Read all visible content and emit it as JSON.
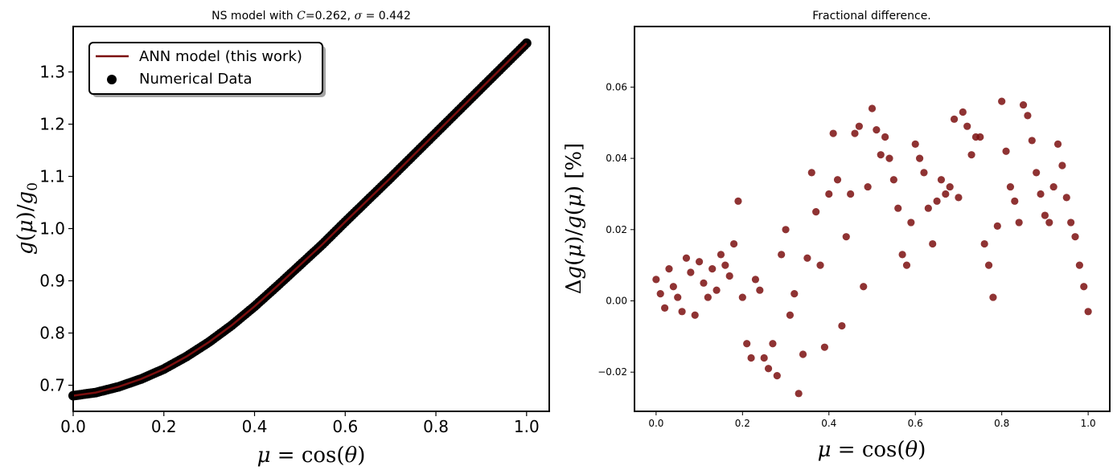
{
  "chart_data": [
    {
      "type": "line+scatter",
      "title": "NS model with C=0.262, σ = 0.442",
      "xlabel": "μ = cos(θ)",
      "ylabel": "g(μ)/g₀",
      "xlim": [
        0.0,
        1.05
      ],
      "ylim": [
        0.65,
        1.387
      ],
      "x_ticks": [
        "0.0",
        "0.2",
        "0.4",
        "0.6",
        "0.8",
        "1.0"
      ],
      "y_ticks": [
        "0.7",
        "0.8",
        "0.9",
        "1.0",
        "1.1",
        "1.2",
        "1.3"
      ],
      "grid": false,
      "legend_position": "upper-left",
      "colors": {
        "line": "#7b0f0f",
        "points": "#000000"
      },
      "series": [
        {
          "name": "ANN model (this work)",
          "kind": "line",
          "x": [
            0.0,
            0.05,
            0.1,
            0.15,
            0.2,
            0.25,
            0.3,
            0.35,
            0.4,
            0.45,
            0.5,
            0.55,
            0.6,
            0.65,
            0.7,
            0.75,
            0.8,
            0.85,
            0.9,
            0.95,
            1.0
          ],
          "y": [
            0.68,
            0.686,
            0.697,
            0.712,
            0.731,
            0.755,
            0.783,
            0.815,
            0.851,
            0.89,
            0.93,
            0.97,
            1.013,
            1.055,
            1.097,
            1.14,
            1.183,
            1.226,
            1.269,
            1.312,
            1.355
          ]
        },
        {
          "name": "Numerical Data",
          "kind": "scatter",
          "x": [
            0.0,
            0.05,
            0.1,
            0.15,
            0.2,
            0.25,
            0.3,
            0.35,
            0.4,
            0.45,
            0.5,
            0.55,
            0.6,
            0.65,
            0.7,
            0.75,
            0.8,
            0.85,
            0.9,
            0.95,
            1.0
          ],
          "y": [
            0.68,
            0.686,
            0.697,
            0.712,
            0.731,
            0.755,
            0.783,
            0.815,
            0.851,
            0.89,
            0.93,
            0.97,
            1.013,
            1.055,
            1.097,
            1.14,
            1.183,
            1.226,
            1.269,
            1.312,
            1.355
          ]
        }
      ]
    },
    {
      "type": "scatter",
      "title": "Fractional difference.",
      "xlabel": "μ = cos(θ)",
      "ylabel": "Δg(μ)/g(μ) [%]",
      "xlim": [
        -0.05,
        1.05
      ],
      "ylim": [
        -0.031,
        0.077
      ],
      "x_ticks": [
        "0.0",
        "0.2",
        "0.4",
        "0.6",
        "0.8",
        "1.0"
      ],
      "y_ticks": [
        "−0.02",
        "0.00",
        "0.02",
        "0.04",
        "0.06"
      ],
      "grid": false,
      "colors": {
        "points": "#7b0f0f"
      },
      "series": [
        {
          "name": "",
          "kind": "scatter",
          "x": [
            0.0,
            0.01,
            0.02,
            0.03,
            0.04,
            0.05,
            0.06,
            0.07,
            0.08,
            0.09,
            0.1,
            0.11,
            0.12,
            0.13,
            0.14,
            0.15,
            0.16,
            0.17,
            0.18,
            0.19,
            0.2,
            0.21,
            0.22,
            0.23,
            0.24,
            0.25,
            0.26,
            0.27,
            0.28,
            0.29,
            0.3,
            0.31,
            0.32,
            0.33,
            0.34,
            0.35,
            0.36,
            0.37,
            0.38,
            0.39,
            0.4,
            0.41,
            0.42,
            0.43,
            0.44,
            0.45,
            0.46,
            0.47,
            0.48,
            0.49,
            0.5,
            0.51,
            0.52,
            0.53,
            0.54,
            0.55,
            0.56,
            0.57,
            0.58,
            0.59,
            0.6,
            0.61,
            0.62,
            0.63,
            0.64,
            0.65,
            0.66,
            0.67,
            0.68,
            0.69,
            0.7,
            0.71,
            0.72,
            0.73,
            0.74,
            0.75,
            0.76,
            0.77,
            0.78,
            0.79,
            0.8,
            0.81,
            0.82,
            0.83,
            0.84,
            0.85,
            0.86,
            0.87,
            0.88,
            0.89,
            0.9,
            0.91,
            0.92,
            0.93,
            0.94,
            0.95,
            0.96,
            0.97,
            0.98,
            0.99,
            1.0
          ],
          "y": [
            0.006,
            0.002,
            -0.002,
            0.009,
            0.004,
            0.001,
            -0.003,
            0.012,
            0.008,
            -0.004,
            0.011,
            0.005,
            0.001,
            0.009,
            0.003,
            0.013,
            0.01,
            0.007,
            0.016,
            0.028,
            0.001,
            -0.012,
            -0.016,
            0.006,
            0.003,
            -0.016,
            -0.019,
            -0.012,
            -0.021,
            0.013,
            0.02,
            -0.004,
            0.002,
            -0.026,
            -0.015,
            0.012,
            0.036,
            0.025,
            0.01,
            -0.013,
            0.03,
            0.047,
            0.034,
            -0.007,
            0.018,
            0.03,
            0.047,
            0.049,
            0.004,
            0.032,
            0.054,
            0.048,
            0.041,
            0.046,
            0.04,
            0.034,
            0.026,
            0.013,
            0.01,
            0.022,
            0.044,
            0.04,
            0.036,
            0.026,
            0.016,
            0.028,
            0.034,
            0.03,
            0.032,
            0.051,
            0.029,
            0.053,
            0.049,
            0.041,
            0.046,
            0.046,
            0.016,
            0.01,
            0.001,
            0.021,
            0.056,
            0.042,
            0.032,
            0.028,
            0.022,
            0.055,
            0.052,
            0.045,
            0.036,
            0.03,
            0.024,
            0.022,
            0.032,
            0.044,
            0.038,
            0.029,
            0.022,
            0.018,
            0.01,
            0.004,
            -0.003
          ]
        }
      ]
    }
  ],
  "legend": {
    "ann_label": "ANN model (this work)",
    "num_label": "Numerical Data"
  }
}
